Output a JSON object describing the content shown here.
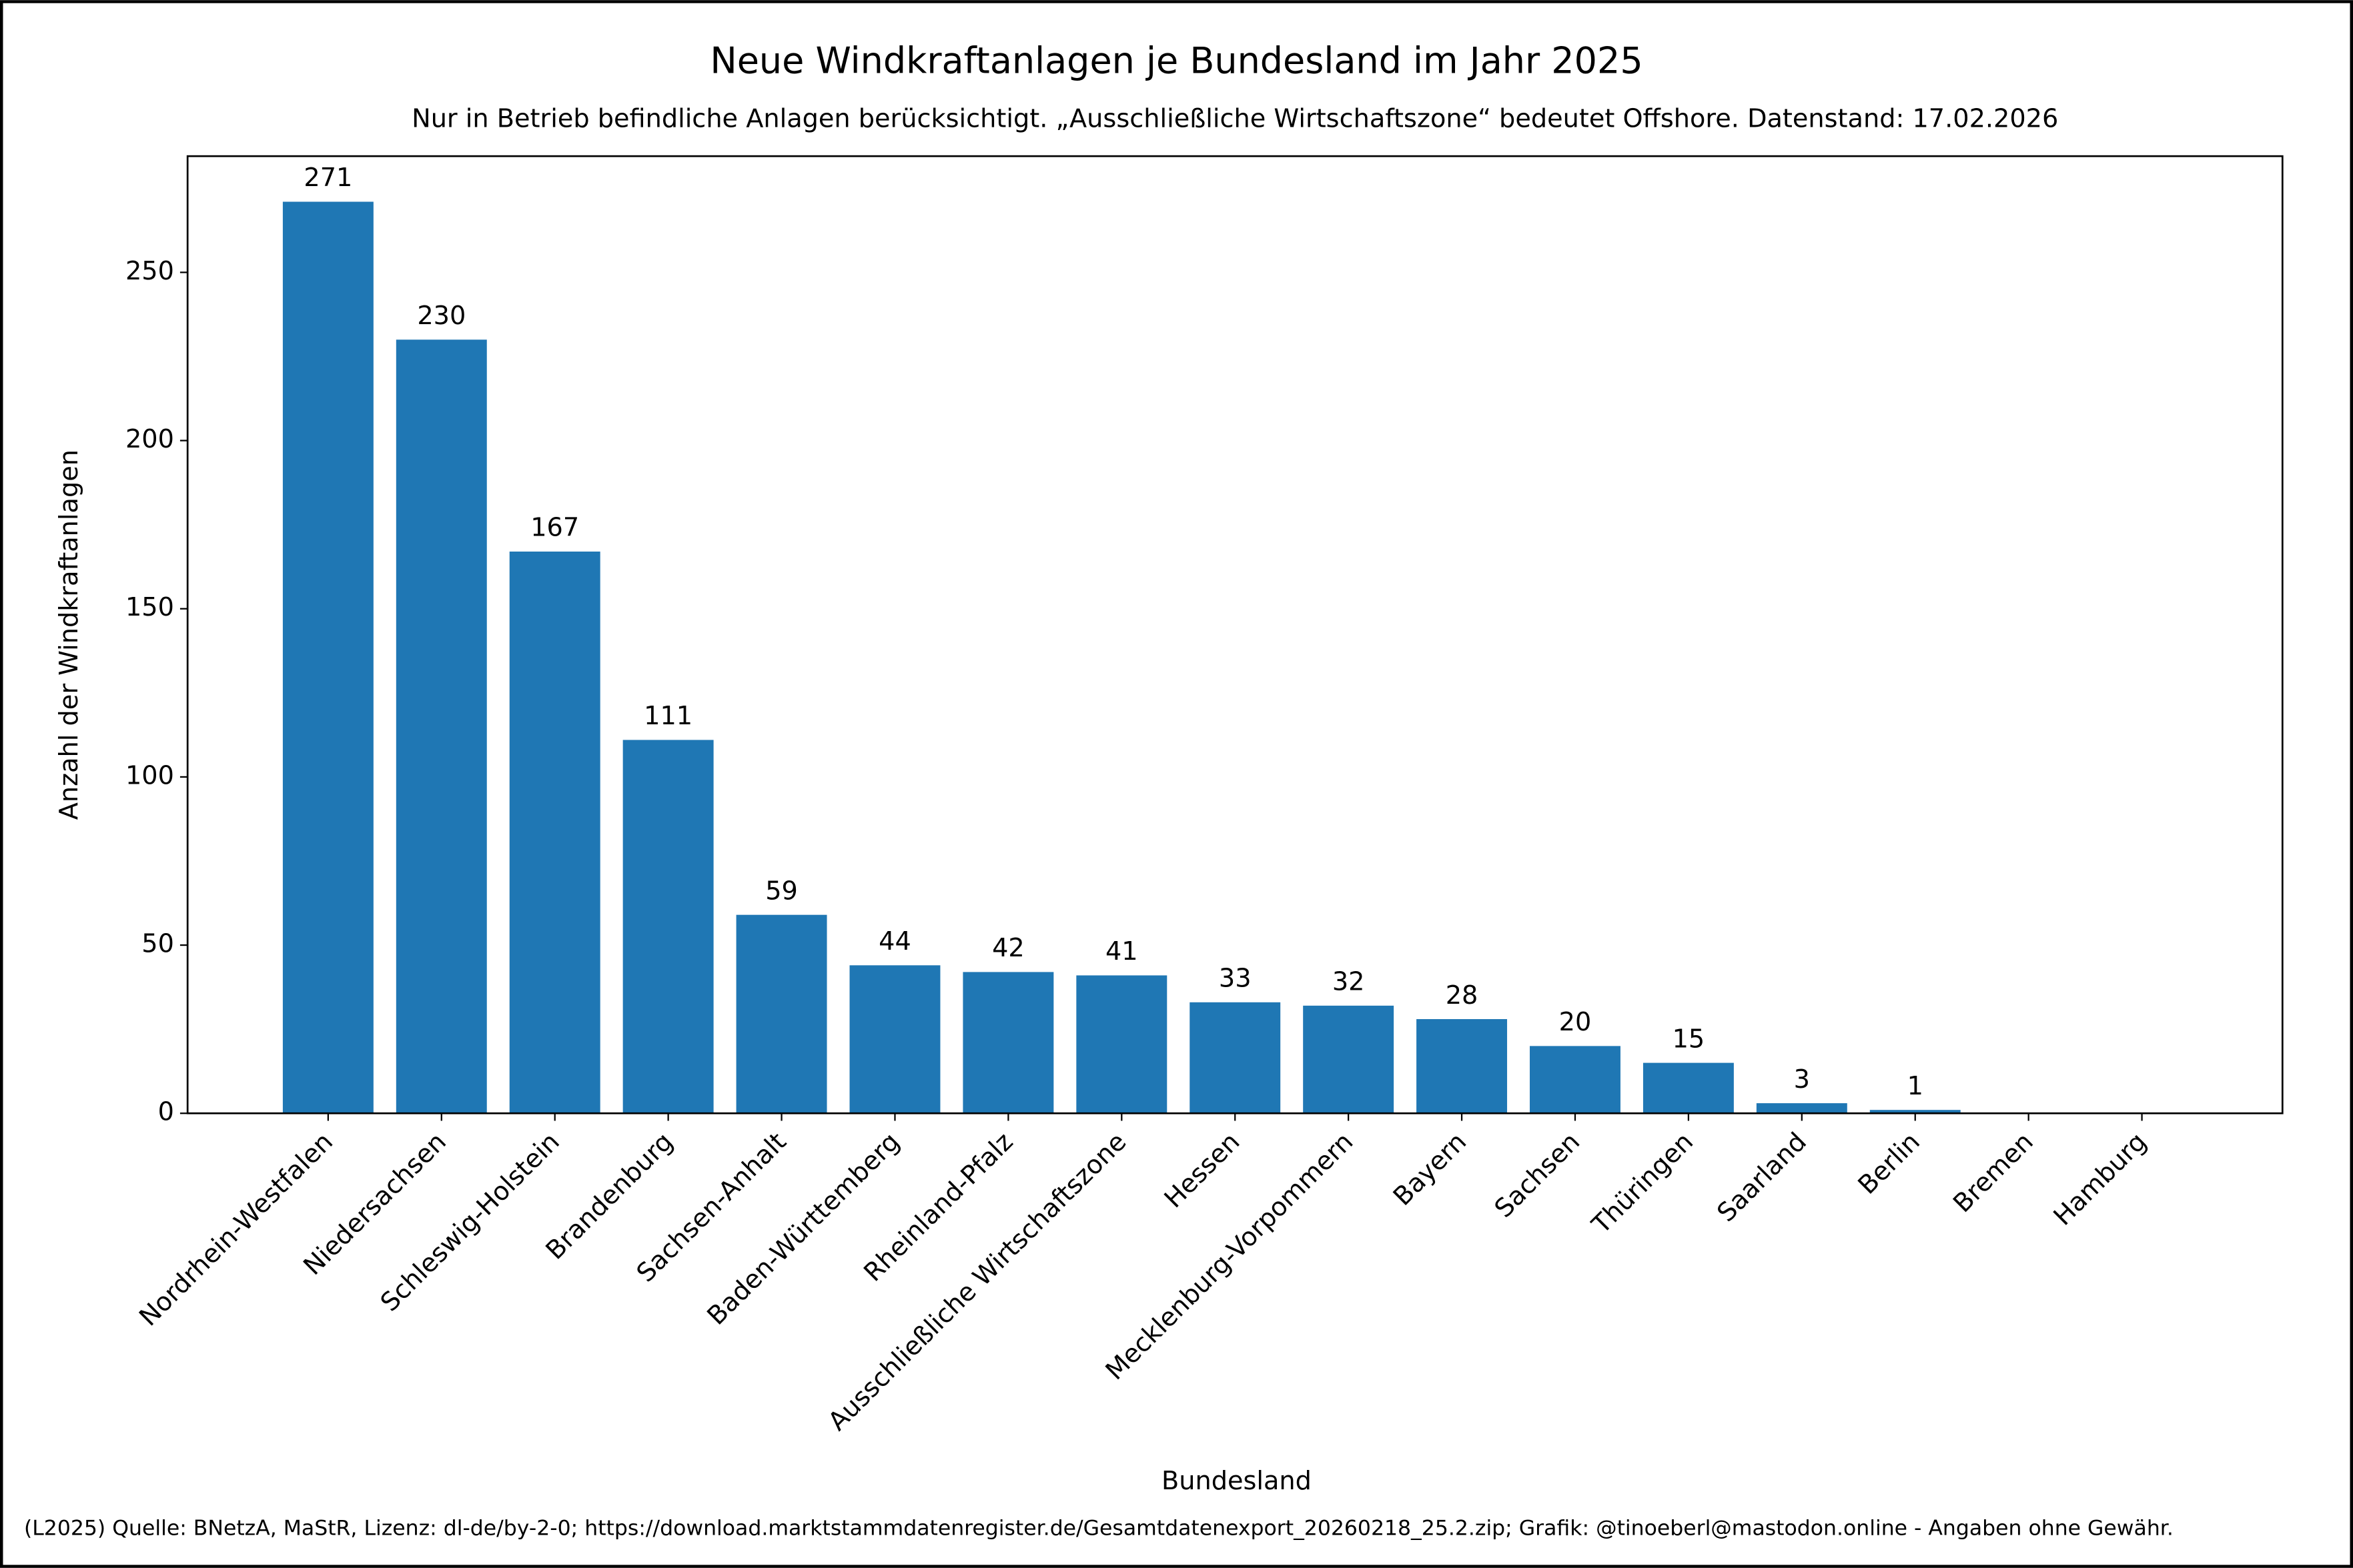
{
  "chart_data": {
    "type": "bar",
    "title": "Neue Windkraftanlagen je Bundesland im Jahr 2025",
    "subtitle": "Nur in Betrieb befindliche Anlagen berücksichtigt. „Ausschließliche Wirtschaftszone“ bedeutet Offshore. Datenstand: 17.02.2026",
    "x_label": "Bundesland",
    "y_label": "Anzahl der Windkraftanlagen",
    "footer": "(L2025) Quelle: BNetzA, MaStR, Lizenz: dl-de/by-2-0; https://download.marktstammdatenregister.de/Gesamtdatenexport_20260218_25.2.zip; Grafik: @tinoeberl@mastodon.online - Angaben ohne Gewähr.",
    "categories": [
      "Nordrhein-Westfalen",
      "Niedersachsen",
      "Schleswig-Holstein",
      "Brandenburg",
      "Sachsen-Anhalt",
      "Baden-Württemberg",
      "Rheinland-Pfalz",
      "Ausschließliche Wirtschaftszone",
      "Hessen",
      "Mecklenburg-Vorpommern",
      "Bayern",
      "Sachsen",
      "Thüringen",
      "Saarland",
      "Berlin",
      "Bremen",
      "Hamburg"
    ],
    "values": [
      271,
      230,
      167,
      111,
      59,
      44,
      42,
      41,
      33,
      32,
      28,
      20,
      15,
      3,
      1,
      0,
      0
    ],
    "color": "#1f77b4",
    "ylim": [
      0,
      284.55
    ],
    "yticks": [
      0,
      50,
      100,
      150,
      200,
      250
    ],
    "grid": false
  }
}
